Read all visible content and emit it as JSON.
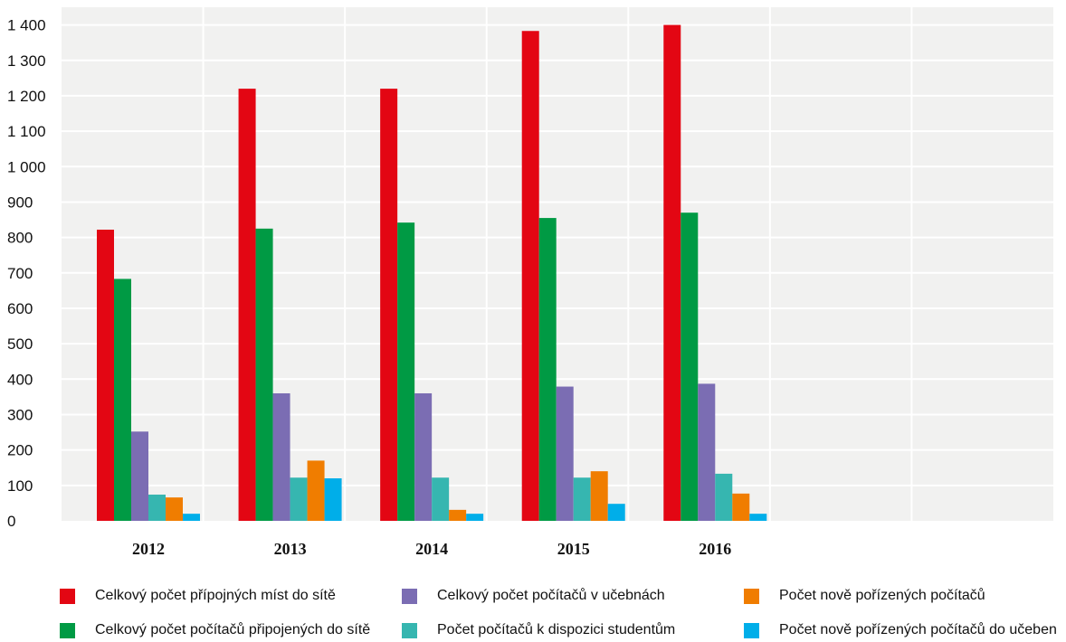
{
  "chart_data": {
    "type": "bar",
    "categories": [
      "2012",
      "2013",
      "2014",
      "2015",
      "2016",
      "",
      ""
    ],
    "ylim": [
      0,
      1450
    ],
    "yticks": [
      0,
      100,
      200,
      300,
      400,
      500,
      600,
      700,
      800,
      900,
      1000,
      1100,
      1200,
      1300,
      1400
    ],
    "ytick_labels": [
      "0",
      "100",
      "200",
      "300",
      "400",
      "500",
      "600",
      "700",
      "800",
      "900",
      "1 000",
      "1 100",
      "1 200",
      "1 300",
      "1 400"
    ],
    "grid": true,
    "legend_placement": "bottom",
    "series": [
      {
        "name": "Celkový počet přípojných míst do sítě",
        "color": "#e30613",
        "values": [
          822,
          1220,
          1220,
          1383,
          1400,
          null,
          null
        ]
      },
      {
        "name": "Celkový počet počítačů připojených do sítě",
        "color": "#009a44",
        "values": [
          683,
          825,
          842,
          855,
          870,
          null,
          null
        ]
      },
      {
        "name": "Celkový počet počítačů v učebnách",
        "color": "#7b6db3",
        "values": [
          252,
          360,
          360,
          379,
          387,
          null,
          null
        ]
      },
      {
        "name": "Počet počítačů k dispozici studentům",
        "color": "#36b6b0",
        "values": [
          74,
          122,
          122,
          122,
          133,
          null,
          null
        ]
      },
      {
        "name": "Počet nově pořízených počítačů",
        "color": "#f07d00",
        "values": [
          66,
          170,
          31,
          140,
          77,
          null,
          null
        ]
      },
      {
        "name": "Počet nově pořízených počítačů do učeben",
        "color": "#00aee9",
        "values": [
          20,
          120,
          20,
          48,
          20,
          null,
          null
        ]
      }
    ]
  }
}
